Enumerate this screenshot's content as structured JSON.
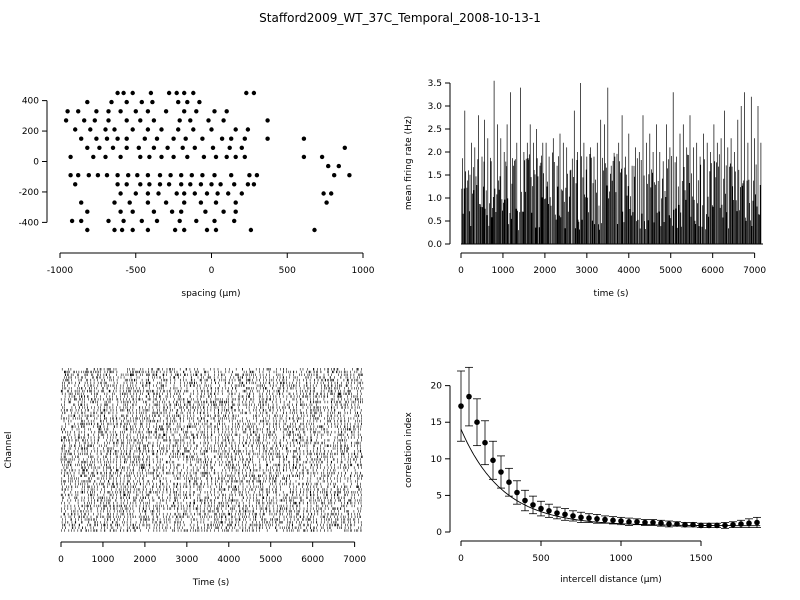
{
  "figure_title": "Stafford2009_WT_37C_Temporal_2008-10-13-1",
  "chart_data": [
    {
      "id": "positions",
      "type": "scatter",
      "xlabel": "spacing (µm)",
      "ylabel": "",
      "xlim": [
        -1000,
        1000
      ],
      "ylim": [
        -450,
        450
      ],
      "xticks": [
        -1000,
        -500,
        0,
        500,
        1000
      ],
      "yticks": [
        -400,
        -200,
        0,
        200,
        400
      ],
      "points": [
        [
          -620,
          450
        ],
        [
          -580,
          450
        ],
        [
          -520,
          450
        ],
        [
          -400,
          450
        ],
        [
          -280,
          450
        ],
        [
          -230,
          450
        ],
        [
          -180,
          450
        ],
        [
          -120,
          450
        ],
        [
          230,
          450
        ],
        [
          280,
          450
        ],
        [
          -820,
          390
        ],
        [
          -660,
          390
        ],
        [
          -560,
          390
        ],
        [
          -460,
          390
        ],
        [
          -390,
          390
        ],
        [
          -220,
          390
        ],
        [
          -160,
          390
        ],
        [
          -80,
          390
        ],
        [
          -950,
          330
        ],
        [
          -880,
          330
        ],
        [
          -760,
          330
        ],
        [
          -680,
          330
        ],
        [
          -600,
          330
        ],
        [
          -500,
          330
        ],
        [
          -420,
          330
        ],
        [
          -300,
          330
        ],
        [
          -180,
          330
        ],
        [
          -100,
          330
        ],
        [
          20,
          330
        ],
        [
          100,
          330
        ],
        [
          -960,
          270
        ],
        [
          -840,
          270
        ],
        [
          -770,
          270
        ],
        [
          -680,
          270
        ],
        [
          -560,
          270
        ],
        [
          -470,
          270
        ],
        [
          -380,
          270
        ],
        [
          -210,
          270
        ],
        [
          -140,
          270
        ],
        [
          -20,
          270
        ],
        [
          80,
          270
        ],
        [
          370,
          270
        ],
        [
          -900,
          210
        ],
        [
          -800,
          210
        ],
        [
          -700,
          210
        ],
        [
          -640,
          210
        ],
        [
          -520,
          210
        ],
        [
          -420,
          210
        ],
        [
          -330,
          210
        ],
        [
          -220,
          210
        ],
        [
          -120,
          210
        ],
        [
          0,
          210
        ],
        [
          160,
          210
        ],
        [
          240,
          210
        ],
        [
          -860,
          150
        ],
        [
          -760,
          150
        ],
        [
          -690,
          150
        ],
        [
          -620,
          150
        ],
        [
          -560,
          150
        ],
        [
          -440,
          150
        ],
        [
          -360,
          150
        ],
        [
          -250,
          150
        ],
        [
          -170,
          150
        ],
        [
          -60,
          150
        ],
        [
          70,
          150
        ],
        [
          130,
          150
        ],
        [
          220,
          150
        ],
        [
          370,
          150
        ],
        [
          610,
          150
        ],
        [
          -820,
          90
        ],
        [
          -740,
          90
        ],
        [
          -650,
          90
        ],
        [
          -560,
          90
        ],
        [
          -480,
          90
        ],
        [
          -380,
          90
        ],
        [
          -290,
          90
        ],
        [
          -190,
          90
        ],
        [
          -110,
          90
        ],
        [
          10,
          90
        ],
        [
          120,
          90
        ],
        [
          200,
          90
        ],
        [
          880,
          90
        ],
        [
          -930,
          30
        ],
        [
          -780,
          30
        ],
        [
          -700,
          30
        ],
        [
          -600,
          30
        ],
        [
          -470,
          30
        ],
        [
          -410,
          30
        ],
        [
          -330,
          30
        ],
        [
          -250,
          30
        ],
        [
          -160,
          30
        ],
        [
          -50,
          30
        ],
        [
          30,
          30
        ],
        [
          100,
          30
        ],
        [
          160,
          30
        ],
        [
          220,
          30
        ],
        [
          610,
          30
        ],
        [
          730,
          30
        ],
        [
          -930,
          -90
        ],
        [
          -880,
          -90
        ],
        [
          -810,
          -90
        ],
        [
          -750,
          -90
        ],
        [
          -690,
          -90
        ],
        [
          -620,
          -90
        ],
        [
          -550,
          -90
        ],
        [
          -490,
          -90
        ],
        [
          -420,
          -90
        ],
        [
          -340,
          -90
        ],
        [
          -270,
          -90
        ],
        [
          -200,
          -90
        ],
        [
          -130,
          -90
        ],
        [
          -60,
          -90
        ],
        [
          20,
          -90
        ],
        [
          130,
          -90
        ],
        [
          250,
          -90
        ],
        [
          300,
          -90
        ],
        [
          810,
          -90
        ],
        [
          910,
          -90
        ],
        [
          770,
          -30
        ],
        [
          840,
          -30
        ],
        [
          -900,
          -150
        ],
        [
          -620,
          -150
        ],
        [
          -560,
          -150
        ],
        [
          -470,
          -150
        ],
        [
          -410,
          -150
        ],
        [
          -340,
          -150
        ],
        [
          -280,
          -150
        ],
        [
          -200,
          -150
        ],
        [
          -140,
          -150
        ],
        [
          -70,
          -150
        ],
        [
          0,
          -150
        ],
        [
          60,
          -150
        ],
        [
          150,
          -150
        ],
        [
          240,
          -150
        ],
        [
          280,
          -150
        ],
        [
          -600,
          -210
        ],
        [
          -500,
          -210
        ],
        [
          -420,
          -210
        ],
        [
          -350,
          -210
        ],
        [
          -230,
          -210
        ],
        [
          -180,
          -210
        ],
        [
          -110,
          -210
        ],
        [
          -30,
          -210
        ],
        [
          40,
          -210
        ],
        [
          110,
          -210
        ],
        [
          200,
          -210
        ],
        [
          740,
          -210
        ],
        [
          790,
          -210
        ],
        [
          -860,
          -270
        ],
        [
          -640,
          -270
        ],
        [
          -540,
          -270
        ],
        [
          -420,
          -270
        ],
        [
          -300,
          -270
        ],
        [
          -180,
          -270
        ],
        [
          -70,
          -270
        ],
        [
          30,
          -270
        ],
        [
          160,
          -270
        ],
        [
          760,
          -270
        ],
        [
          -820,
          -330
        ],
        [
          -600,
          -330
        ],
        [
          -520,
          -330
        ],
        [
          -380,
          -330
        ],
        [
          -260,
          -330
        ],
        [
          -200,
          -330
        ],
        [
          -40,
          -330
        ],
        [
          80,
          -330
        ],
        [
          160,
          -330
        ],
        [
          -920,
          -390
        ],
        [
          -860,
          -390
        ],
        [
          -680,
          -390
        ],
        [
          -580,
          -390
        ],
        [
          -460,
          -390
        ],
        [
          -360,
          -390
        ],
        [
          -210,
          -390
        ],
        [
          -100,
          -390
        ],
        [
          20,
          -390
        ],
        [
          150,
          -390
        ],
        [
          -820,
          -450
        ],
        [
          -640,
          -450
        ],
        [
          -590,
          -450
        ],
        [
          -520,
          -450
        ],
        [
          -420,
          -450
        ],
        [
          -240,
          -450
        ],
        [
          -180,
          -450
        ],
        [
          -30,
          -450
        ],
        [
          30,
          -450
        ],
        [
          260,
          -450
        ],
        [
          680,
          -450
        ]
      ]
    },
    {
      "id": "firing-rate",
      "type": "line",
      "xlabel": "time (s)",
      "ylabel": "mean firing rate (Hz)",
      "xlim": [
        0,
        7200
      ],
      "ylim": [
        0,
        3.5
      ],
      "xticks": [
        0,
        1000,
        2000,
        3000,
        4000,
        5000,
        6000,
        7000
      ],
      "yticks": [
        "0.0",
        "0.5",
        "1.0",
        "1.5",
        "2.0",
        "2.5",
        "3.0",
        "3.5"
      ],
      "peaks": [
        [
          20,
          1.2
        ],
        [
          90,
          2.9
        ],
        [
          180,
          1.6
        ],
        [
          250,
          2.2
        ],
        [
          330,
          2.1
        ],
        [
          420,
          2.8
        ],
        [
          500,
          1.9
        ],
        [
          560,
          2.7
        ],
        [
          640,
          2.3
        ],
        [
          720,
          1.8
        ],
        [
          790,
          3.55
        ],
        [
          870,
          2.6
        ],
        [
          950,
          2.3
        ],
        [
          1030,
          2.0
        ],
        [
          1100,
          2.6
        ],
        [
          1180,
          3.3
        ],
        [
          1250,
          1.7
        ],
        [
          1330,
          2.2
        ],
        [
          1420,
          3.4
        ],
        [
          1500,
          2.0
        ],
        [
          1580,
          2.2
        ],
        [
          1650,
          2.6
        ],
        [
          1730,
          2.2
        ],
        [
          1800,
          2.5
        ],
        [
          1880,
          1.7
        ],
        [
          1950,
          2.2
        ],
        [
          2030,
          2.2
        ],
        [
          2100,
          1.9
        ],
        [
          2200,
          2.3
        ],
        [
          2290,
          1.7
        ],
        [
          2360,
          2.4
        ],
        [
          2440,
          2.2
        ],
        [
          2520,
          2.1
        ],
        [
          2600,
          1.6
        ],
        [
          2700,
          2.9
        ],
        [
          2780,
          2.0
        ],
        [
          2850,
          3.5
        ],
        [
          2930,
          2.2
        ],
        [
          3000,
          1.9
        ],
        [
          3090,
          2.1
        ],
        [
          3170,
          1.9
        ],
        [
          3250,
          2.2
        ],
        [
          3330,
          2.7
        ],
        [
          3420,
          2.6
        ],
        [
          3500,
          3.4
        ],
        [
          3580,
          1.7
        ],
        [
          3670,
          1.9
        ],
        [
          3760,
          2.2
        ],
        [
          3840,
          2.8
        ],
        [
          3920,
          1.9
        ],
        [
          4000,
          2.4
        ],
        [
          4080,
          1.7
        ],
        [
          4160,
          2.1
        ],
        [
          4250,
          2.0
        ],
        [
          4340,
          2.8
        ],
        [
          4420,
          2.2
        ],
        [
          4500,
          2.4
        ],
        [
          4580,
          2.0
        ],
        [
          4660,
          2.6
        ],
        [
          4740,
          2.0
        ],
        [
          4820,
          1.8
        ],
        [
          4900,
          2.6
        ],
        [
          4980,
          2.1
        ],
        [
          5060,
          3.3
        ],
        [
          5140,
          1.9
        ],
        [
          5220,
          2.4
        ],
        [
          5300,
          2.6
        ],
        [
          5380,
          2.1
        ],
        [
          5460,
          2.8
        ],
        [
          5540,
          2.1
        ],
        [
          5620,
          2.2
        ],
        [
          5700,
          1.9
        ],
        [
          5780,
          2.4
        ],
        [
          5870,
          2.2
        ],
        [
          5950,
          2.0
        ],
        [
          6030,
          2.6
        ],
        [
          6110,
          2.2
        ],
        [
          6200,
          2.3
        ],
        [
          6280,
          2.9
        ],
        [
          6360,
          2.1
        ],
        [
          6440,
          2.3
        ],
        [
          6520,
          2.0
        ],
        [
          6600,
          2.7
        ],
        [
          6680,
          3.0
        ],
        [
          6760,
          3.3
        ],
        [
          6840,
          2.2
        ],
        [
          6920,
          3.2
        ],
        [
          7000,
          2.3
        ],
        [
          7080,
          3.0
        ],
        [
          7150,
          2.2
        ]
      ]
    },
    {
      "id": "raster",
      "type": "scatter",
      "xlabel": "Time (s)",
      "ylabel": "Channel",
      "xlim": [
        0,
        7200
      ],
      "xticks": [
        0,
        1000,
        2000,
        3000,
        4000,
        5000,
        6000,
        7000
      ],
      "channels": 60,
      "bursts": [
        20,
        90,
        180,
        250,
        330,
        420,
        500,
        560,
        640,
        720,
        790,
        870,
        950,
        1030,
        1100,
        1180,
        1250,
        1330,
        1420,
        1500,
        1580,
        1650,
        1730,
        1800,
        1880,
        1950,
        2030,
        2100,
        2200,
        2290,
        2360,
        2440,
        2520,
        2600,
        2700,
        2780,
        2850,
        2930,
        3000,
        3090,
        3170,
        3250,
        3330,
        3420,
        3500,
        3580,
        3670,
        3760,
        3840,
        3920,
        4000,
        4080,
        4160,
        4250,
        4340,
        4420,
        4500,
        4580,
        4660,
        4740,
        4820,
        4900,
        4980,
        5060,
        5140,
        5220,
        5300,
        5380,
        5460,
        5540,
        5620,
        5700,
        5780,
        5870,
        5950,
        6030,
        6110,
        6200,
        6280,
        6360,
        6440,
        6520,
        6600,
        6680,
        6760,
        6840,
        6920,
        7000,
        7080,
        7150
      ]
    },
    {
      "id": "correlation",
      "type": "scatter",
      "xlabel": "intercell distance (µm)",
      "ylabel": "correlation index",
      "xlim": [
        0,
        1900
      ],
      "ylim": [
        0,
        22
      ],
      "xticks": [
        0,
        500,
        1000,
        1500
      ],
      "yticks": [
        0,
        5,
        10,
        15,
        20
      ],
      "x": [
        0,
        50,
        100,
        150,
        200,
        250,
        300,
        350,
        400,
        450,
        500,
        550,
        600,
        650,
        700,
        750,
        800,
        850,
        900,
        950,
        1000,
        1050,
        1100,
        1150,
        1200,
        1250,
        1300,
        1350,
        1400,
        1450,
        1500,
        1550,
        1600,
        1650,
        1700,
        1750,
        1800,
        1850
      ],
      "y": [
        17.2,
        18.5,
        15.0,
        12.2,
        9.8,
        8.2,
        6.8,
        5.4,
        4.3,
        3.7,
        3.2,
        2.9,
        2.6,
        2.4,
        2.2,
        2.0,
        1.9,
        1.8,
        1.7,
        1.6,
        1.5,
        1.4,
        1.4,
        1.3,
        1.3,
        1.2,
        1.1,
        1.1,
        1.0,
        1.0,
        0.9,
        0.9,
        0.9,
        0.9,
        1.0,
        1.1,
        1.2,
        1.3
      ],
      "err": [
        4.8,
        4.0,
        3.2,
        3.0,
        2.6,
        2.2,
        1.9,
        1.6,
        1.4,
        1.2,
        1.0,
        0.9,
        0.8,
        0.8,
        0.7,
        0.7,
        0.6,
        0.6,
        0.5,
        0.5,
        0.5,
        0.5,
        0.4,
        0.4,
        0.4,
        0.4,
        0.4,
        0.3,
        0.3,
        0.3,
        0.3,
        0.3,
        0.3,
        0.4,
        0.4,
        0.5,
        0.6,
        0.7
      ],
      "fit": {
        "a": 13.2,
        "lambda": 260,
        "c": 0.85
      }
    }
  ]
}
